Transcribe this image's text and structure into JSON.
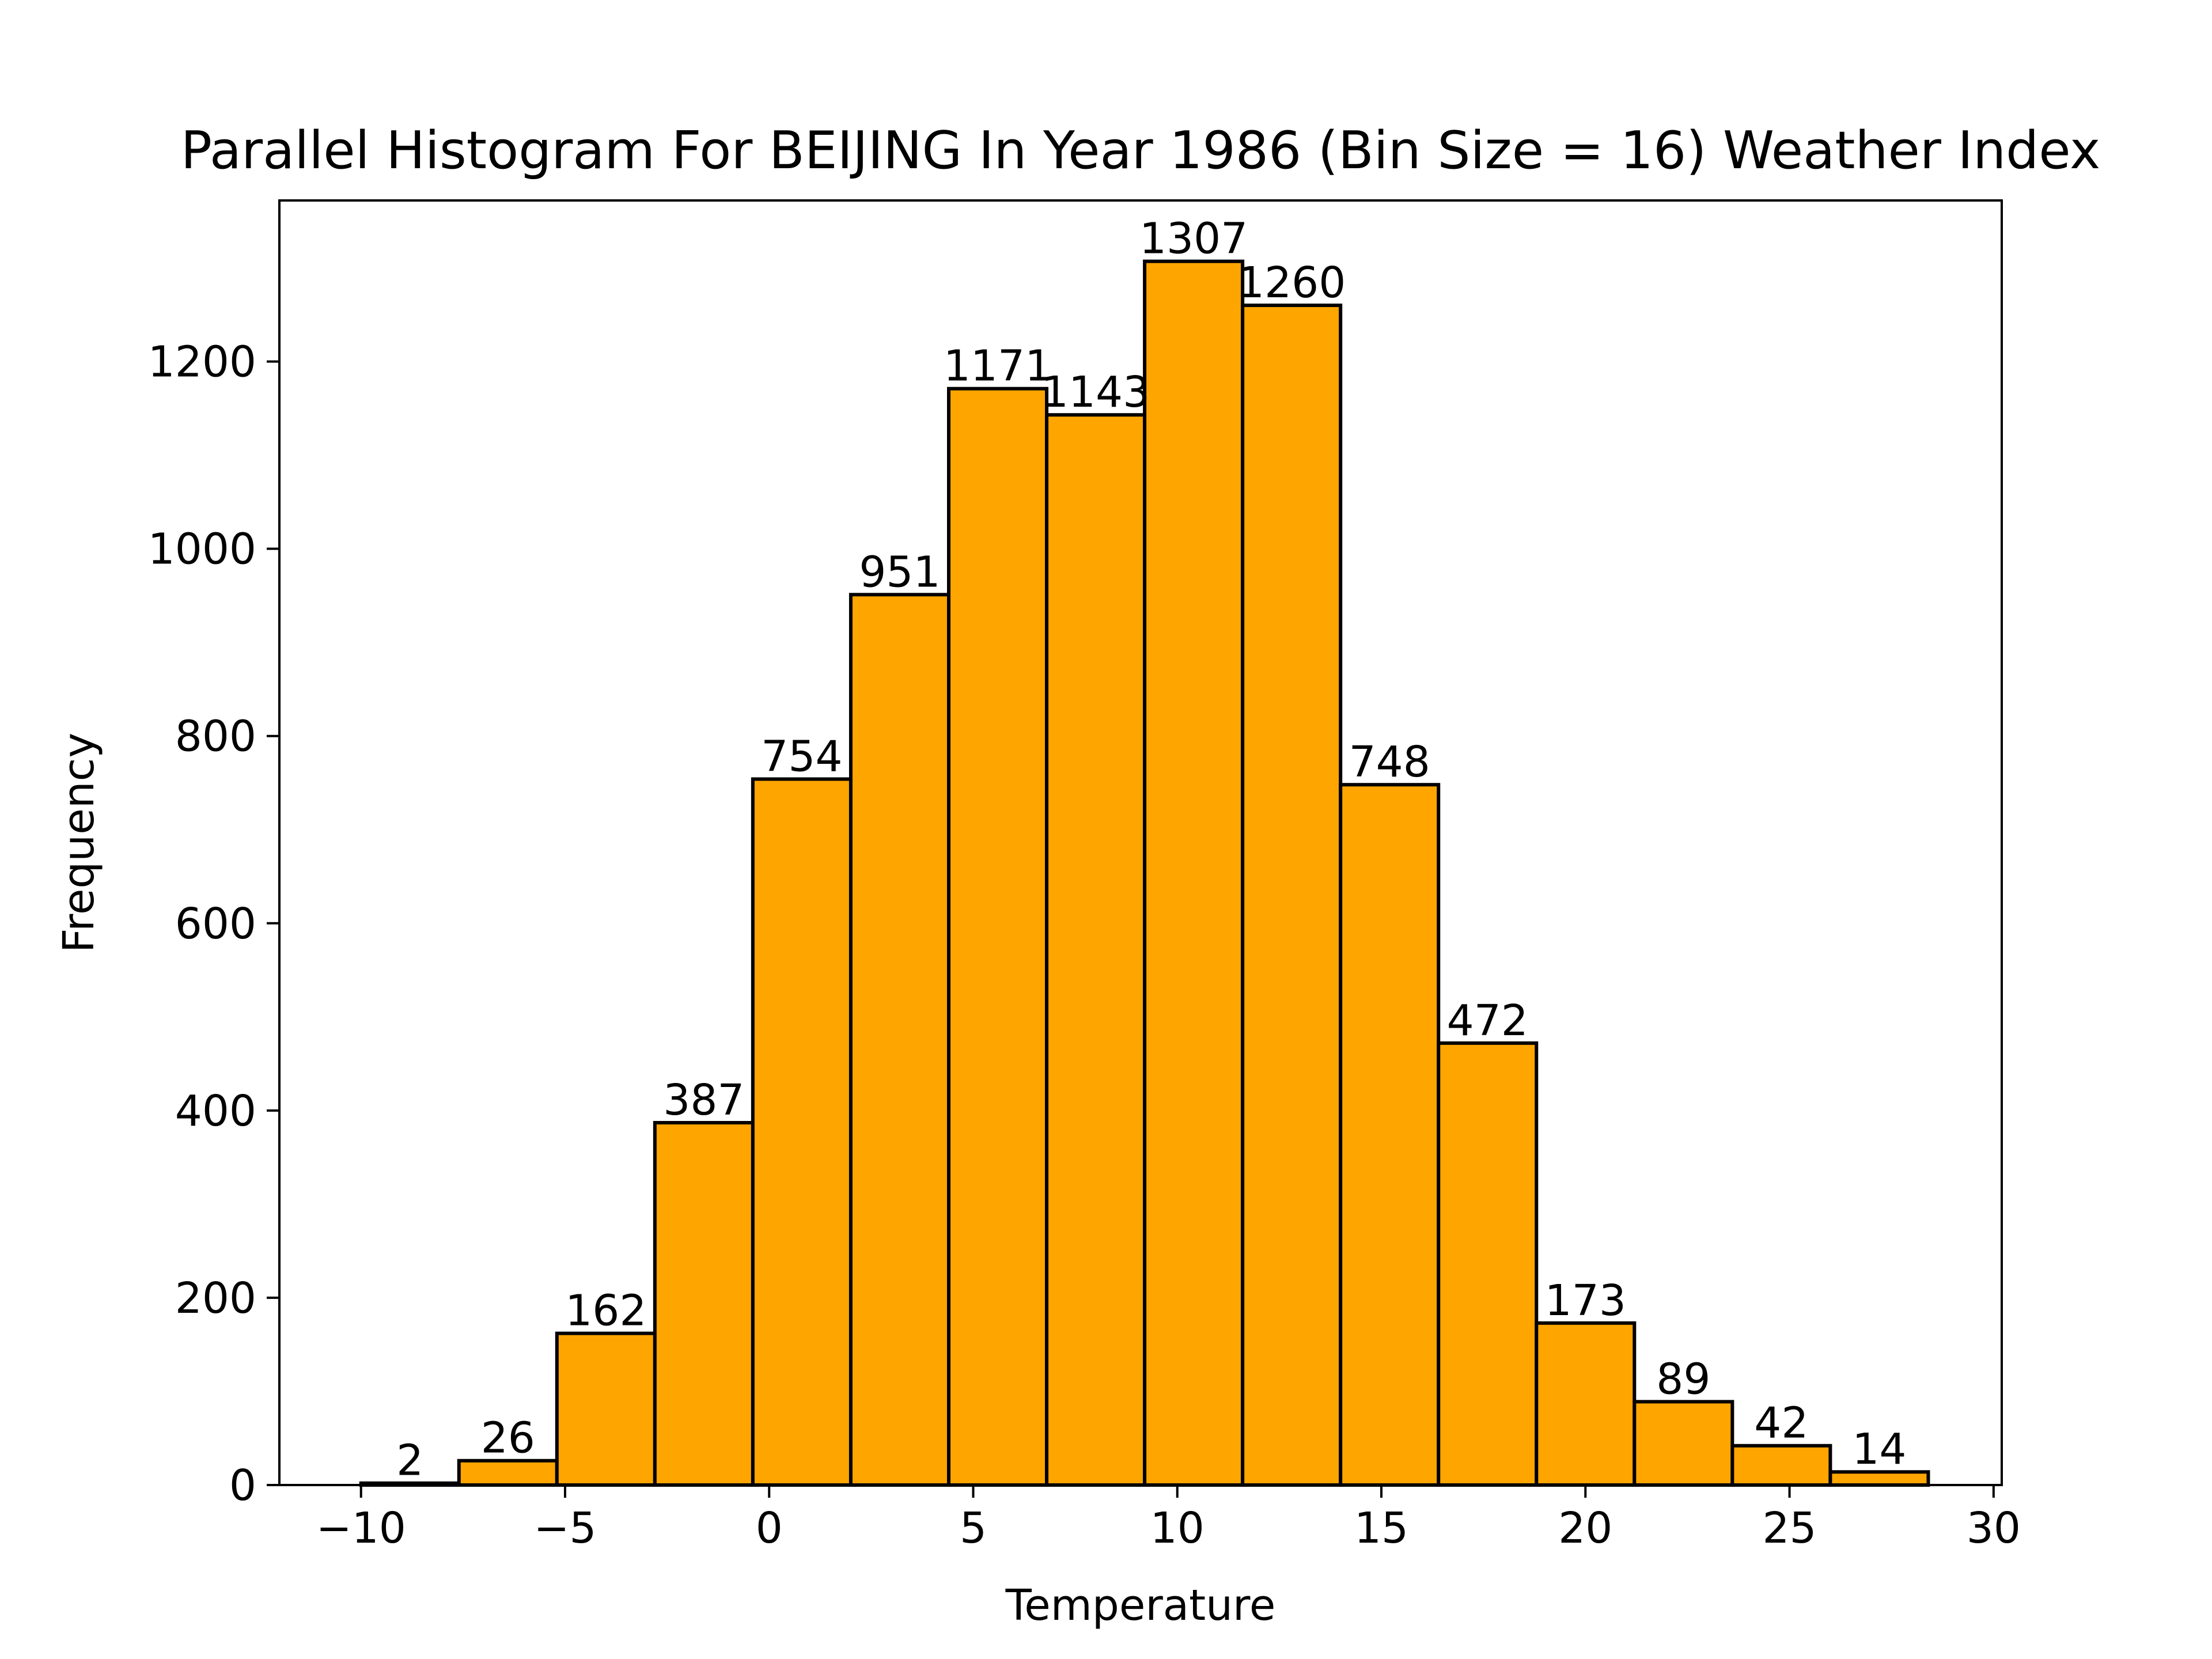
{
  "chart_data": {
    "type": "bar",
    "title": "Parallel Histogram For BEIJING In Year 1986 (Bin Size = 16) Weather Index",
    "xlabel": "Temperature",
    "ylabel": "Frequency",
    "bin_edges": [
      -10.0,
      -7.6,
      -5.2,
      -2.8,
      -0.4,
      2.0,
      4.4,
      6.8,
      9.2,
      11.6,
      14.0,
      16.4,
      18.8,
      21.2,
      23.6,
      26.0,
      28.4
    ],
    "values": [
      2,
      26,
      162,
      387,
      754,
      951,
      1171,
      1143,
      1307,
      1260,
      748,
      472,
      173,
      89,
      42,
      14
    ],
    "data_labels": [
      "2",
      "26",
      "162",
      "387",
      "754",
      "951",
      "1171",
      "1143",
      "1307",
      "1260",
      "748",
      "472",
      "173",
      "89",
      "42",
      "14"
    ],
    "xlim": [
      -12,
      30.2
    ],
    "ylim": [
      0,
      1372
    ],
    "xticks": [
      -10,
      -5,
      0,
      5,
      10,
      15,
      20,
      25,
      30
    ],
    "xtick_labels": [
      "−10",
      "−5",
      "0",
      "5",
      "10",
      "15",
      "20",
      "25",
      "30"
    ],
    "yticks": [
      0,
      200,
      400,
      600,
      800,
      1000,
      1200
    ],
    "ytick_labels": [
      "0",
      "200",
      "400",
      "600",
      "800",
      "1000",
      "1200"
    ],
    "bar_color": "#ffa500",
    "edge_color": "#000000",
    "grid": false,
    "legend": "none"
  }
}
